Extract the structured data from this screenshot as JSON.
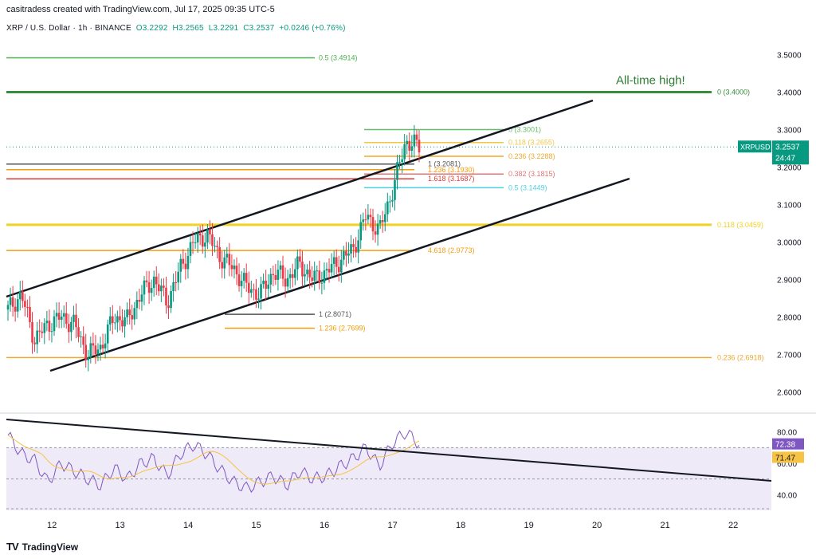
{
  "header": {
    "attribution": "casitradess created with TradingView.com, Jul 17, 2025 09:35 UTC-5"
  },
  "legend": {
    "symbol": "XRP / U.S. Dollar · 1h · BINANCE",
    "o": "O3.2292",
    "h": "H3.2565",
    "l": "L3.2291",
    "c": "C3.2537",
    "change": "+0.0246 (+0.76%)"
  },
  "price_axis": {
    "ticks": [
      "3.5000",
      "3.4000",
      "3.3000",
      "3.2000",
      "3.1000",
      "3.0000",
      "2.9000",
      "2.8000",
      "2.7000",
      "2.6000"
    ]
  },
  "time_axis": {
    "ticks": [
      "12",
      "13",
      "14",
      "15",
      "16",
      "17",
      "18",
      "19",
      "20",
      "21",
      "22"
    ]
  },
  "badges": {
    "symbol": "XRPUSD",
    "price": "3.2537",
    "countdown": "24:47",
    "rsi_value": "72.38",
    "rsi_ma": "71.47"
  },
  "rsi_axis": {
    "ticks": [
      "80.00",
      "60.00",
      "40.00"
    ]
  },
  "annotations": {
    "ath": "All-time high!",
    "fib": [
      {
        "label": "0.5 (3.4914)",
        "price": 3.4914,
        "color": "#4caf50"
      },
      {
        "label": "0 (3.4000)",
        "price": 3.4,
        "color": "#388e3c"
      },
      {
        "label": "0 (3.3001)",
        "price": 3.3001,
        "color": "#66bb6a"
      },
      {
        "label": "0.118 (3.2655)",
        "price": 3.2655,
        "color": "#f2c744"
      },
      {
        "label": "0.236 (3.2288)",
        "price": 3.2288,
        "color": "#f0a830"
      },
      {
        "label": "1 (3.2081)",
        "price": 3.2081,
        "color": "#555555"
      },
      {
        "label": "1.236 (3.1930)",
        "price": 3.193,
        "color": "#f59e0b"
      },
      {
        "label": "0.382 (3.1815)",
        "price": 3.1815,
        "color": "#e57373"
      },
      {
        "label": "1.618 (3.1687)",
        "price": 3.1687,
        "color": "#e53935"
      },
      {
        "label": "0.5 (3.1449)",
        "price": 3.1449,
        "color": "#4dd0e1"
      },
      {
        "label": "0.118 (3.0459)",
        "price": 3.0459,
        "color": "#f2d024"
      },
      {
        "label": "4.618 (2.9773)",
        "price": 2.9773,
        "color": "#f59e0b"
      },
      {
        "label": "1 (2.8071)",
        "price": 2.8071,
        "color": "#555555"
      },
      {
        "label": "1.236 (2.7699)",
        "price": 2.7699,
        "color": "#f59e0b"
      },
      {
        "label": "0.236 (2.6918)",
        "price": 2.6918,
        "color": "#f0a830"
      }
    ]
  },
  "brand": "TradingView",
  "chart_data": {
    "type": "candlestick",
    "title": "XRP / U.S. Dollar · 1h · BINANCE",
    "ylim": [
      2.55,
      3.55
    ],
    "rsi_ylim": [
      30,
      90
    ],
    "x_ticks": [
      "12",
      "13",
      "14",
      "15",
      "16",
      "17",
      "18",
      "19",
      "20",
      "21",
      "22"
    ],
    "price_path": [
      [
        0,
        2.82
      ],
      [
        1,
        2.86
      ],
      [
        2,
        2.74
      ],
      [
        3,
        2.78
      ],
      [
        4,
        2.8
      ],
      [
        5,
        2.78
      ],
      [
        6,
        2.7
      ],
      [
        7,
        2.72
      ],
      [
        8,
        2.8
      ],
      [
        9,
        2.79
      ],
      [
        10,
        2.86
      ],
      [
        11,
        2.9
      ],
      [
        12,
        2.84
      ],
      [
        13,
        2.93
      ],
      [
        14,
        3.0
      ],
      [
        15,
        3.02
      ],
      [
        16,
        2.96
      ],
      [
        17,
        2.93
      ],
      [
        18,
        2.88
      ],
      [
        19,
        2.86
      ],
      [
        20,
        2.92
      ],
      [
        21,
        2.9
      ],
      [
        22,
        2.94
      ],
      [
        23,
        2.9
      ],
      [
        24,
        2.92
      ],
      [
        25,
        2.95
      ],
      [
        26,
        2.98
      ],
      [
        27,
        3.07
      ],
      [
        28,
        3.03
      ],
      [
        29,
        3.14
      ],
      [
        30,
        3.27
      ],
      [
        31,
        3.2537
      ]
    ],
    "rsi_path": [
      [
        0,
        78
      ],
      [
        1,
        66
      ],
      [
        2,
        62
      ],
      [
        3,
        48
      ],
      [
        4,
        60
      ],
      [
        5,
        55
      ],
      [
        6,
        50
      ],
      [
        7,
        46
      ],
      [
        8,
        57
      ],
      [
        9,
        50
      ],
      [
        10,
        60
      ],
      [
        11,
        63
      ],
      [
        12,
        52
      ],
      [
        13,
        66
      ],
      [
        14,
        72
      ],
      [
        15,
        66
      ],
      [
        16,
        56
      ],
      [
        17,
        48
      ],
      [
        18,
        44
      ],
      [
        19,
        48
      ],
      [
        20,
        52
      ],
      [
        21,
        46
      ],
      [
        22,
        55
      ],
      [
        23,
        50
      ],
      [
        24,
        52
      ],
      [
        25,
        58
      ],
      [
        26,
        63
      ],
      [
        27,
        70
      ],
      [
        28,
        58
      ],
      [
        29,
        73
      ],
      [
        30,
        80
      ],
      [
        31,
        72.38
      ]
    ]
  }
}
